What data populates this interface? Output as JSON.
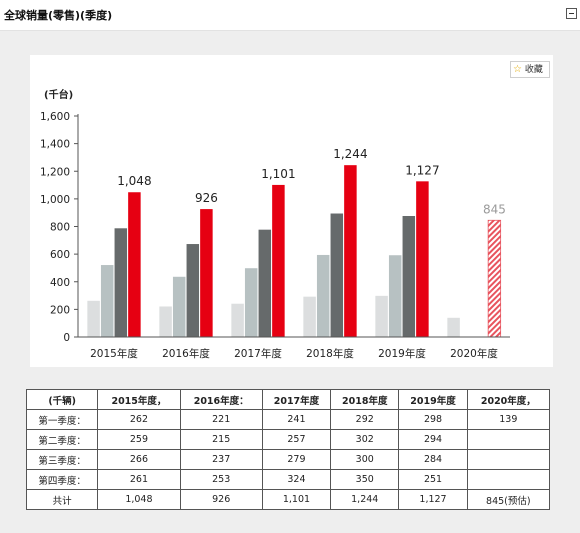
{
  "header": {
    "title": "全球销量(零售)(季度)"
  },
  "favorite_label": "收藏",
  "chart_data": {
    "type": "bar",
    "unit_label": "(千台)",
    "categories": [
      "2015年度",
      "2016年度",
      "2017年度",
      "2018年度",
      "2019年度",
      "2020年度"
    ],
    "series": [
      {
        "values": [
          262,
          221,
          241,
          292,
          298,
          139
        ],
        "color": "#dcdedf"
      },
      {
        "values": [
          521,
          436,
          498,
          594,
          592,
          null
        ],
        "color": "#b7c1c2"
      },
      {
        "values": [
          787,
          673,
          777,
          894,
          876,
          null
        ],
        "color": "#666a6b"
      },
      {
        "values": [
          1048,
          926,
          1101,
          1244,
          1127,
          845
        ],
        "color": "#e60012"
      }
    ],
    "totals": [
      "1,048",
      "926",
      "1,101",
      "1,244",
      "1,127",
      "845"
    ],
    "estimated_category": "2020年度",
    "yticks": [
      "0",
      "200",
      "400",
      "600",
      "800",
      "1,000",
      "1,200",
      "1,400",
      "1,600"
    ],
    "ylim": [
      0,
      1600
    ]
  },
  "table": {
    "headers": [
      "(千辆)",
      "2015年度，",
      "2016年度：",
      "2017年度",
      "2018年度",
      "2019年度",
      "2020年度，"
    ],
    "rows": [
      [
        "第一季度：",
        "262",
        "221",
        "241",
        "292",
        "298",
        "139"
      ],
      [
        "第二季度：",
        "259",
        "215",
        "257",
        "302",
        "294",
        ""
      ],
      [
        "第三季度：",
        "266",
        "237",
        "279",
        "300",
        "284",
        ""
      ],
      [
        "第四季度：",
        "261",
        "253",
        "324",
        "350",
        "251",
        ""
      ],
      [
        "共计",
        "1,048",
        "926",
        "1,101",
        "1,244",
        "1,127",
        "845(预估)"
      ]
    ]
  }
}
